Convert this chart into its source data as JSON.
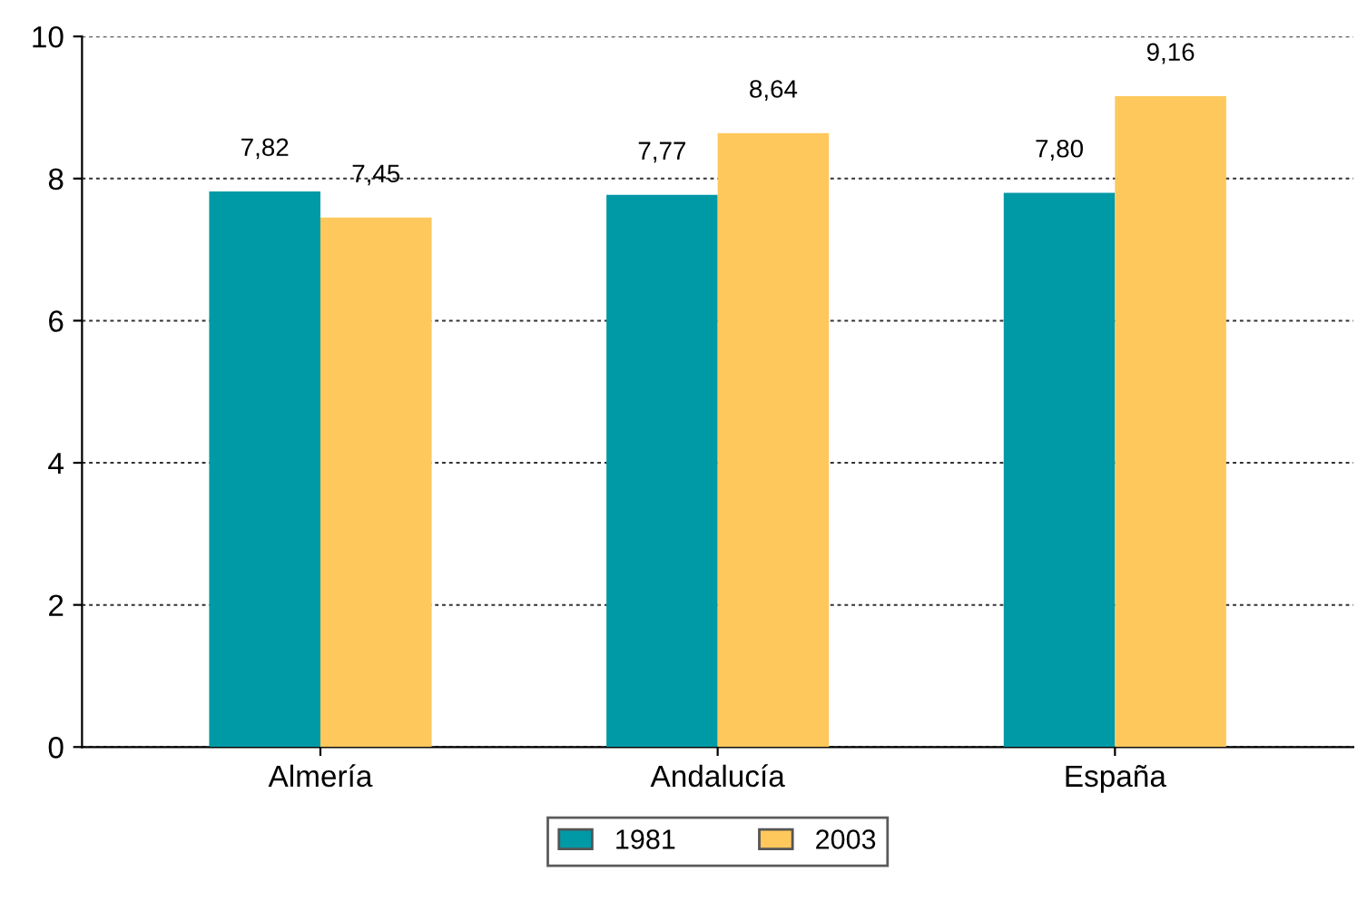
{
  "chart_data": {
    "type": "bar",
    "categories": [
      "Almería",
      "Andalucía",
      "España"
    ],
    "series": [
      {
        "name": "1981",
        "color": "#0099a6",
        "values": [
          7.82,
          7.77,
          7.8
        ],
        "value_labels": [
          "7,82",
          "7,77",
          "7,80"
        ]
      },
      {
        "name": "2003",
        "color": "#fec85c",
        "values": [
          7.45,
          8.64,
          9.16
        ],
        "value_labels": [
          "7,45",
          "8,64",
          "9,16"
        ]
      }
    ],
    "ylim": [
      0,
      10
    ],
    "yticks": [
      0,
      2,
      4,
      6,
      8,
      10
    ],
    "grid": "y",
    "legend": "bottom"
  }
}
